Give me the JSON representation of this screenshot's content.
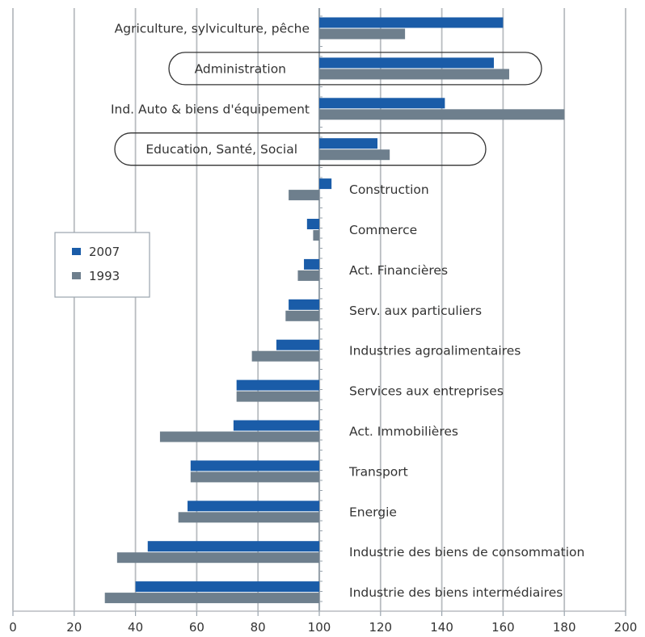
{
  "chart_data": {
    "type": "bar",
    "orientation": "horizontal",
    "baseline": 100,
    "xlim": [
      0,
      200
    ],
    "xticks": [
      0,
      20,
      40,
      60,
      80,
      100,
      120,
      140,
      160,
      180,
      200
    ],
    "grid": true,
    "legend_position": "left",
    "categories": [
      "Agriculture, sylviculture, pêche",
      "Administration",
      "Ind. Auto & biens d'équipement",
      "Education, Santé, Social",
      "Construction",
      "Commerce",
      "Act. Financières",
      "Serv. aux particuliers",
      "Industries agroalimentaires",
      "Services aux entreprises",
      "Act. Immobilières",
      "Transport",
      "Energie",
      "Industrie des biens de consommation",
      "Industrie des biens intermédiaires"
    ],
    "highlighted": [
      "Administration",
      "Education, Santé, Social"
    ],
    "series": [
      {
        "name": "2007",
        "color": "#1a5ca8",
        "values": [
          160,
          157,
          141,
          119,
          104,
          96,
          95,
          90,
          86,
          73,
          72,
          58,
          57,
          44,
          40
        ]
      },
      {
        "name": "1993",
        "color": "#6e7f8d",
        "values": [
          128,
          162,
          180,
          123,
          90,
          98,
          93,
          89,
          78,
          73,
          48,
          58,
          54,
          34,
          30
        ]
      }
    ]
  }
}
